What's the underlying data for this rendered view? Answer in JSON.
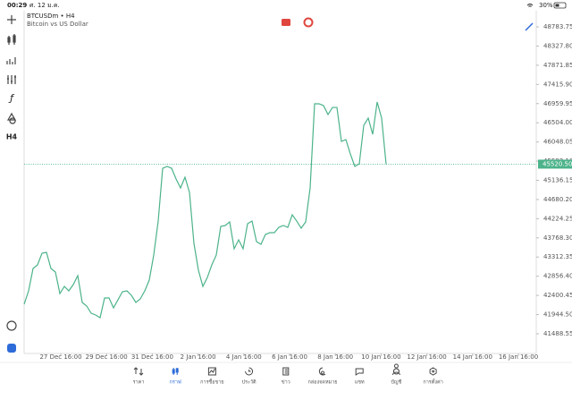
{
  "status_bar": {
    "time": "00:29",
    "date": "ศ. 12 ม.ค.",
    "battery": "30%"
  },
  "toolbar": {
    "timeframe": "H4"
  },
  "chart_data": {
    "type": "line",
    "title": "BTCUSDm • H4",
    "subtitle": "Bitcoin vs US Dollar",
    "color": "#4cb38a",
    "values": [
      42190,
      42509,
      43041,
      43126,
      43402,
      43424,
      43041,
      42956,
      42445,
      42615,
      42509,
      42658,
      42871,
      42233,
      42148,
      41977,
      41935,
      41871,
      42339,
      42339,
      42105,
      42296,
      42488,
      42509,
      42403,
      42233,
      42318,
      42509,
      42764,
      43360,
      44168,
      45423,
      45466,
      45423,
      45168,
      44955,
      45210,
      44849,
      43636,
      42998,
      42615,
      42828,
      43126,
      43360,
      44041,
      44062,
      44147,
      43509,
      43721,
      43509,
      44104,
      44168,
      43679,
      43615,
      43849,
      43892,
      43892,
      44019,
      44062,
      44019,
      44317,
      44168,
      43998,
      44147,
      44955,
      46955,
      46955,
      46912,
      46699,
      46869,
      46869,
      46061,
      46104,
      45763,
      45466,
      45529,
      46444,
      46614,
      46231,
      46997,
      46614,
      45520.5
    ],
    "xlim": [
      0,
      114.6
    ],
    "xticks": [
      {
        "value": 8.2,
        "label": "27 Dec 16:00"
      },
      {
        "value": 18.44,
        "label": "29 Dec 16:00"
      },
      {
        "value": 28.68,
        "label": "31 Dec 16:00"
      },
      {
        "value": 38.92,
        "label": "2 Jan 16:00"
      },
      {
        "value": 49.16,
        "label": "4 Jan 16:00"
      },
      {
        "value": 59.4,
        "label": "6 Jan 16:00"
      },
      {
        "value": 69.64,
        "label": "8 Jan 16:00"
      },
      {
        "value": 79.88,
        "label": "10 Jan 16:00"
      },
      {
        "value": 90.12,
        "label": "12 Jan 16:00"
      },
      {
        "value": 100.36,
        "label": "14 Jan 16:00"
      },
      {
        "value": 110.6,
        "label": "16 Jan 16:00"
      }
    ],
    "ylim": [
      41063,
      49167
    ],
    "yticks": [
      48783.75,
      {
        "value": 48327.8,
        "label": "48327.80"
      },
      47871.85,
      {
        "value": 47415.9,
        "label": "47415.90"
      },
      46959.95,
      {
        "value": 46504,
        "label": "46504.00"
      },
      46048.05,
      {
        "value": 45592.1,
        "label": "45592.10"
      },
      45136.15,
      {
        "value": 44680.2,
        "label": "44680.20"
      },
      44224.25,
      {
        "value": 43768.3,
        "label": "43768.30"
      },
      43312.35,
      {
        "value": 42856.4,
        "label": "42856.40"
      },
      42400.45,
      {
        "value": 41944.5,
        "label": "41944.50"
      },
      41488.55
    ],
    "last_price": {
      "value": 45520.5,
      "label": "45520.50"
    }
  },
  "tabs": [
    "ราคา",
    "กราฟ",
    "การซื้อขาย",
    "ประวัติ",
    "ข่าว",
    "กล่องจดหมาย",
    "แชท",
    "บัญชี",
    "การตั้งค่า"
  ],
  "active_tab": 1
}
